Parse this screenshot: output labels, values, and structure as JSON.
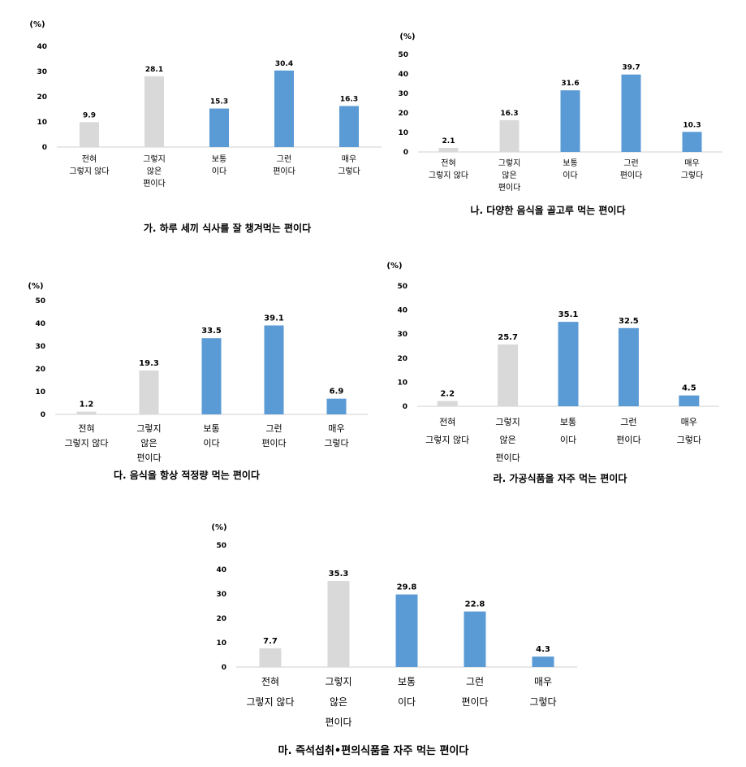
{
  "colors": {
    "neutral": "#d9d9d9",
    "positive": "#5b9bd5",
    "axis": "#d0d0d0"
  },
  "chart_data": [
    {
      "type": "bar",
      "title": "가. 하루 세끼 식사를 잘 챙겨먹는 편이다",
      "unit": "(%)",
      "ylim": [
        0,
        40
      ],
      "yticks": [
        "0",
        "10",
        "20",
        "30",
        "40"
      ],
      "categories": [
        [
          "전혀",
          "그렇지 않다"
        ],
        [
          "그렇지",
          "않은",
          "편이다"
        ],
        [
          "보통",
          "이다"
        ],
        [
          "그런",
          "편이다"
        ],
        [
          "매우",
          "그렇다"
        ]
      ],
      "values": [
        9.9,
        28.1,
        15.3,
        30.4,
        16.3
      ],
      "value_labels": [
        "9.9",
        "28.1",
        "15.3",
        "30.4",
        "16.3"
      ],
      "series_color_keys": [
        "neutral",
        "neutral",
        "positive",
        "positive",
        "positive"
      ]
    },
    {
      "type": "bar",
      "title": "나. 다양한 음식을 골고루 먹는 편이다",
      "unit": "(%)",
      "ylim": [
        0,
        50
      ],
      "yticks": [
        "0",
        "10",
        "20",
        "30",
        "40",
        "50"
      ],
      "categories": [
        [
          "전혀",
          "그렇지 않다"
        ],
        [
          "그렇지",
          "않은",
          "편이다"
        ],
        [
          "보통",
          "이다"
        ],
        [
          "그런",
          "편이다"
        ],
        [
          "매우",
          "그렇다"
        ]
      ],
      "values": [
        2.1,
        16.3,
        31.6,
        39.7,
        10.3
      ],
      "value_labels": [
        "2.1",
        "16.3",
        "31.6",
        "39.7",
        "10.3"
      ],
      "series_color_keys": [
        "neutral",
        "neutral",
        "positive",
        "positive",
        "positive"
      ]
    },
    {
      "type": "bar",
      "title": "다. 음식을 항상 적정량 먹는 편이다",
      "unit": "(%)",
      "ylim": [
        0,
        50
      ],
      "yticks": [
        "0",
        "10",
        "20",
        "30",
        "40",
        "50"
      ],
      "categories": [
        [
          "전혀",
          "그렇지 않다"
        ],
        [
          "그렇지",
          "않은",
          "편이다"
        ],
        [
          "보통",
          "이다"
        ],
        [
          "그런",
          "편이다"
        ],
        [
          "매우",
          "그렇다"
        ]
      ],
      "values": [
        1.2,
        19.3,
        33.5,
        39.1,
        6.9
      ],
      "value_labels": [
        "1.2",
        "19.3",
        "33.5",
        "39.1",
        "6.9"
      ],
      "series_color_keys": [
        "neutral",
        "neutral",
        "positive",
        "positive",
        "positive"
      ]
    },
    {
      "type": "bar",
      "title": "라. 가공식품을 자주 먹는 편이다",
      "unit": "(%)",
      "ylim": [
        0,
        50
      ],
      "yticks": [
        "0",
        "10",
        "20",
        "30",
        "40",
        "50"
      ],
      "categories": [
        [
          "전혀",
          "그렇지 않다"
        ],
        [
          "그렇지",
          "않은",
          "편이다"
        ],
        [
          "보통",
          "이다"
        ],
        [
          "그런",
          "편이다"
        ],
        [
          "매우",
          "그렇다"
        ]
      ],
      "values": [
        2.2,
        25.7,
        35.1,
        32.5,
        4.5
      ],
      "value_labels": [
        "2.2",
        "25.7",
        "35.1",
        "32.5",
        "4.5"
      ],
      "series_color_keys": [
        "neutral",
        "neutral",
        "positive",
        "positive",
        "positive"
      ]
    },
    {
      "type": "bar",
      "title": "마. 즉석섭취•편의식품을 자주 먹는 편이다",
      "unit": "(%)",
      "ylim": [
        0,
        50
      ],
      "yticks": [
        "0",
        "10",
        "20",
        "30",
        "40",
        "50"
      ],
      "categories": [
        [
          "전혀",
          "그렇지 않다"
        ],
        [
          "그렇지",
          "않은",
          "편이다"
        ],
        [
          "보통",
          "이다"
        ],
        [
          "그런",
          "편이다"
        ],
        [
          "매우",
          "그렇다"
        ]
      ],
      "values": [
        7.7,
        35.3,
        29.8,
        22.8,
        4.3
      ],
      "value_labels": [
        "7.7",
        "35.3",
        "29.8",
        "22.8",
        "4.3"
      ],
      "series_color_keys": [
        "neutral",
        "neutral",
        "positive",
        "positive",
        "positive"
      ]
    }
  ]
}
